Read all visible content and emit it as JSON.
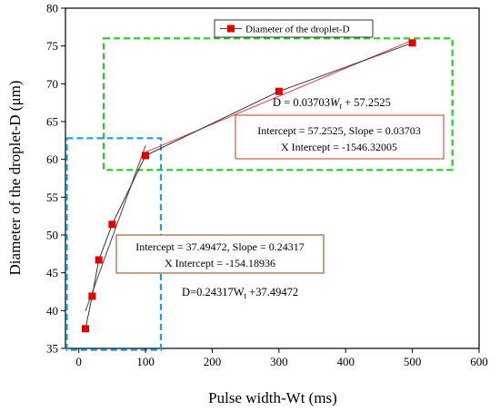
{
  "chart_data": {
    "type": "line",
    "title": "",
    "xlabel": "Pulse width-Wt (ms)",
    "ylabel": "Diameter of the droplet-D (μm)",
    "xlim": [
      -20,
      600
    ],
    "ylim": [
      35,
      80
    ],
    "xticks": [
      "0",
      "100",
      "200",
      "300",
      "400",
      "500",
      "600"
    ],
    "yticks": [
      "35",
      "40",
      "45",
      "50",
      "55",
      "60",
      "65",
      "70",
      "75",
      "80"
    ],
    "legend_position": "top-center",
    "series": [
      {
        "name": "Diameter of the droplet-D",
        "color": "#e00000",
        "x": [
          10,
          20,
          30,
          50,
          100,
          300,
          500
        ],
        "y": [
          37.6,
          41.9,
          46.7,
          51.4,
          60.5,
          69.0,
          75.4
        ]
      }
    ],
    "fits": [
      {
        "name": "fit-high",
        "slope": 0.03703,
        "intercept": 57.2525,
        "x_range": [
          100,
          500
        ],
        "color": "#e05050"
      },
      {
        "name": "fit-low",
        "slope": 0.24317,
        "intercept": 37.49472,
        "x_range": [
          10,
          100
        ],
        "color": "#555555"
      }
    ],
    "annotations": {
      "high_eq_prefix": "D = 0.03703",
      "high_eq_var": "W",
      "high_eq_sub": "t",
      "high_eq_suffix": " + 57.2525",
      "high_box_line1": "Intercept = 57.2525, Slope = 0.03703",
      "high_box_line2": "X Intercept = -1546.32005",
      "low_box_line1": "Intercept = 37.49472, Slope = 0.24317",
      "low_box_line2": "X Intercept = -154.18936",
      "low_eq_prefix": "D=0.24317W",
      "low_eq_sub": "t",
      "low_eq_suffix": " +37.49472"
    },
    "colors": {
      "high_region": "#22cc22",
      "low_region": "#1aa0e0",
      "high_box_border": "#c0392b",
      "low_box_border": "#8b4513"
    }
  }
}
